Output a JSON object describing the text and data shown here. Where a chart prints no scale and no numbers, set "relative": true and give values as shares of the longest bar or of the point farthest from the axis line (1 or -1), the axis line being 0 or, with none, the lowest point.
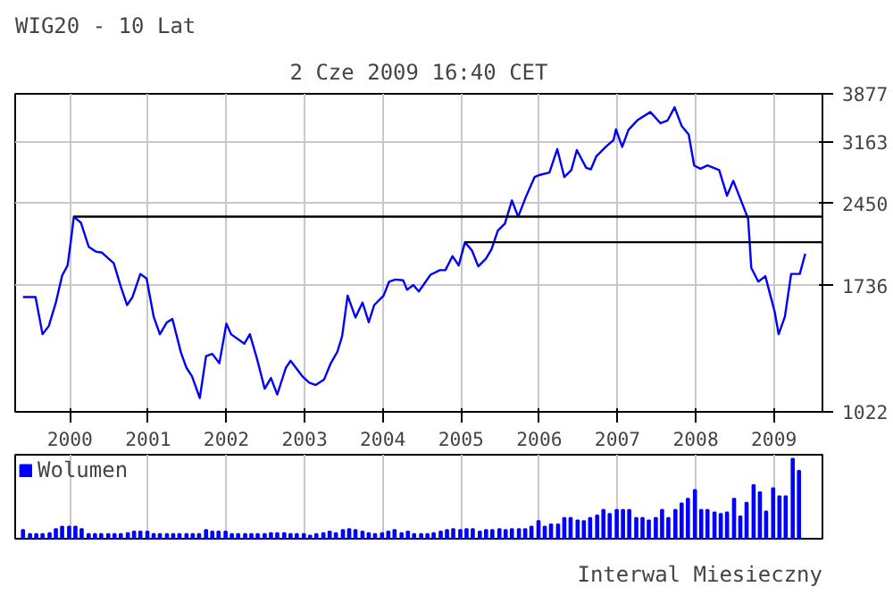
{
  "chart_data": [
    {
      "type": "line",
      "title": "WIG20 - 10 Lat",
      "subtitle": "2 Cze 2009 16:40 CET",
      "log": "y",
      "grid": true,
      "xlim": [
        1999.3,
        2009.62
      ],
      "xticks": [
        2000,
        2001,
        2002,
        2003,
        2004,
        2005,
        2006,
        2007,
        2008,
        2009
      ],
      "ylim": [
        1022,
        3877
      ],
      "yticks": [
        1022,
        1736,
        2450,
        3163,
        3877
      ],
      "series": [
        {
          "color": "#0000ff",
          "x": [
            1999.4,
            1999.56,
            1999.65,
            1999.73,
            1999.82,
            1999.9,
            1999.97,
            2000.01,
            2000.05,
            2000.14,
            2000.24,
            2000.33,
            2000.41,
            2000.56,
            2000.65,
            2000.73,
            2000.8,
            2000.9,
            2000.98,
            2001.07,
            2001.15,
            2001.24,
            2001.31,
            2001.42,
            2001.49,
            2001.56,
            2001.66,
            2001.74,
            2001.82,
            2001.91,
            2002.0,
            2002.06,
            2002.23,
            2002.3,
            2002.39,
            2002.49,
            2002.57,
            2002.65,
            2002.76,
            2002.82,
            2002.97,
            2003.06,
            2003.14,
            2003.25,
            2003.33,
            2003.42,
            2003.48,
            2003.55,
            2003.65,
            2003.74,
            2003.82,
            2003.89,
            2004.01,
            2004.08,
            2004.16,
            2004.26,
            2004.31,
            2004.39,
            2004.46,
            2004.61,
            2004.73,
            2004.8,
            2004.89,
            2004.97,
            2005.05,
            2005.14,
            2005.22,
            2005.32,
            2005.39,
            2005.47,
            2005.56,
            2005.65,
            2005.73,
            2005.83,
            2005.94,
            2006.01,
            2006.13,
            2006.23,
            2006.32,
            2006.41,
            2006.48,
            2006.6,
            2006.66,
            2006.73,
            2006.85,
            2006.95,
            2006.98,
            2007.06,
            2007.14,
            2007.26,
            2007.42,
            2007.55,
            2007.64,
            2007.73,
            2007.82,
            2007.91,
            2007.98,
            2008.06,
            2008.15,
            2008.3,
            2008.4,
            2008.48,
            2008.59,
            2008.67,
            2008.71,
            2008.8,
            2008.89,
            2008.94,
            2009.01,
            2009.06,
            2009.14,
            2009.22,
            2009.33,
            2009.4
          ],
          "values": [
            1654,
            1654,
            1415,
            1465,
            1616,
            1809,
            1888,
            2081,
            2316,
            2259,
            2042,
            2001,
            1992,
            1906,
            1729,
            1599,
            1654,
            1822,
            1787,
            1524,
            1415,
            1488,
            1508,
            1309,
            1229,
            1187,
            1083,
            1291,
            1303,
            1253,
            1480,
            1415,
            1360,
            1415,
            1279,
            1126,
            1178,
            1099,
            1229,
            1266,
            1187,
            1155,
            1144,
            1171,
            1249,
            1316,
            1404,
            1664,
            1518,
            1616,
            1488,
            1599,
            1664,
            1764,
            1780,
            1774,
            1705,
            1739,
            1693,
            1816,
            1851,
            1851,
            1963,
            1888,
            2081,
            2009,
            1881,
            1944,
            2021,
            2185,
            2250,
            2480,
            2316,
            2519,
            2735,
            2760,
            2788,
            3074,
            2735,
            2816,
            3062,
            2842,
            2825,
            2985,
            3103,
            3195,
            3342,
            3103,
            3333,
            3476,
            3592,
            3427,
            3468,
            3664,
            3388,
            3270,
            2871,
            2832,
            2871,
            2816,
            2529,
            2692,
            2456,
            2295,
            1870,
            1764,
            1805,
            1695,
            1553,
            1415,
            1524,
            1822,
            1822,
            1983
          ]
        },
        {
          "color": "#000000",
          "x": [
            2000.05,
            2009.62
          ],
          "values": [
            2316,
            2316
          ]
        },
        {
          "color": "#000000",
          "x": [
            2005.05,
            2009.62
          ],
          "values": [
            2081,
            2081
          ]
        }
      ]
    },
    {
      "type": "bar",
      "relative": true,
      "grid": "x",
      "legend": "top left",
      "tick_labels": false,
      "xlim": [
        1999.3,
        2009.62
      ],
      "xticks": [
        2000,
        2001,
        2002,
        2003,
        2004,
        2005,
        2006,
        2007,
        2008,
        2009
      ],
      "annotations": [
        "Interwal Miesieczny"
      ],
      "series": [
        {
          "name": "Wolumen",
          "color": "#0000ff",
          "x": [
            1999.4,
            1999.49,
            1999.57,
            1999.65,
            1999.74,
            1999.82,
            1999.9,
            1999.99,
            2000.07,
            2000.15,
            2000.24,
            2000.32,
            2000.4,
            2000.49,
            2000.57,
            2000.65,
            2000.74,
            2000.82,
            2000.9,
            2000.99,
            2001.07,
            2001.15,
            2001.24,
            2001.32,
            2001.4,
            2001.49,
            2001.57,
            2001.65,
            2001.74,
            2001.82,
            2001.9,
            2001.99,
            2002.07,
            2002.15,
            2002.24,
            2002.32,
            2002.4,
            2002.49,
            2002.57,
            2002.65,
            2002.74,
            2002.82,
            2002.9,
            2002.99,
            2003.07,
            2003.15,
            2003.24,
            2003.32,
            2003.4,
            2003.49,
            2003.57,
            2003.65,
            2003.74,
            2003.82,
            2003.9,
            2003.99,
            2004.07,
            2004.15,
            2004.24,
            2004.32,
            2004.4,
            2004.49,
            2004.57,
            2004.65,
            2004.74,
            2004.82,
            2004.9,
            2004.99,
            2005.07,
            2005.15,
            2005.24,
            2005.32,
            2005.4,
            2005.49,
            2005.57,
            2005.65,
            2005.74,
            2005.82,
            2005.9,
            2005.99,
            2006.07,
            2006.15,
            2006.24,
            2006.32,
            2006.4,
            2006.49,
            2006.57,
            2006.65,
            2006.74,
            2006.82,
            2006.9,
            2006.99,
            2007.07,
            2007.15,
            2007.24,
            2007.32,
            2007.4,
            2007.49,
            2007.57,
            2007.65,
            2007.74,
            2007.82,
            2007.9,
            2007.99,
            2008.07,
            2008.15,
            2008.24,
            2008.32,
            2008.4,
            2008.49,
            2008.57,
            2008.65,
            2008.74,
            2008.82,
            2008.9,
            2008.99,
            2009.07,
            2009.15,
            2009.24,
            2009.32
          ],
          "values": [
            0.11,
            0.06,
            0.06,
            0.06,
            0.07,
            0.12,
            0.15,
            0.15,
            0.15,
            0.12,
            0.06,
            0.06,
            0.06,
            0.06,
            0.06,
            0.06,
            0.07,
            0.09,
            0.09,
            0.09,
            0.06,
            0.06,
            0.06,
            0.06,
            0.06,
            0.06,
            0.06,
            0.06,
            0.11,
            0.09,
            0.09,
            0.09,
            0.06,
            0.06,
            0.06,
            0.06,
            0.06,
            0.06,
            0.07,
            0.07,
            0.07,
            0.06,
            0.06,
            0.06,
            0.04,
            0.06,
            0.07,
            0.09,
            0.07,
            0.11,
            0.12,
            0.11,
            0.09,
            0.07,
            0.06,
            0.07,
            0.09,
            0.11,
            0.07,
            0.09,
            0.06,
            0.06,
            0.06,
            0.07,
            0.09,
            0.11,
            0.12,
            0.11,
            0.12,
            0.12,
            0.09,
            0.11,
            0.11,
            0.12,
            0.11,
            0.12,
            0.12,
            0.12,
            0.15,
            0.22,
            0.15,
            0.18,
            0.18,
            0.26,
            0.26,
            0.23,
            0.22,
            0.26,
            0.29,
            0.36,
            0.31,
            0.36,
            0.36,
            0.36,
            0.26,
            0.26,
            0.23,
            0.26,
            0.36,
            0.26,
            0.36,
            0.44,
            0.5,
            0.61,
            0.36,
            0.36,
            0.33,
            0.31,
            0.33,
            0.5,
            0.28,
            0.45,
            0.67,
            0.58,
            0.34,
            0.63,
            0.53,
            0.53,
            1.0,
            0.85
          ]
        }
      ]
    }
  ]
}
